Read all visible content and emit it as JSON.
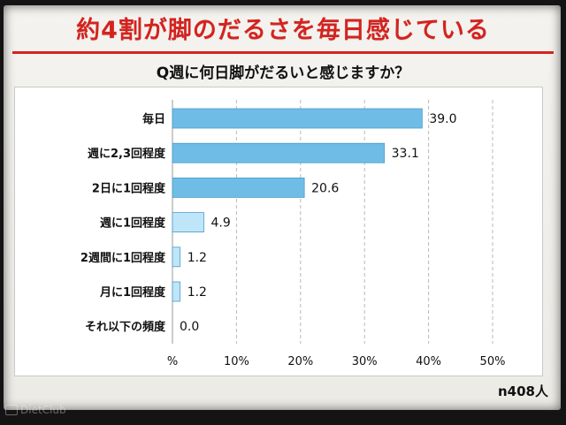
{
  "slide": {
    "headline": "約4割が脚のだるさを毎日感じている",
    "sample_size": "n408人"
  },
  "watermark": {
    "text": "DietClub"
  },
  "chart_data": {
    "type": "bar",
    "orientation": "horizontal",
    "title": "Q週に何日脚がだるいと感じますか？",
    "categories": [
      "毎日",
      "週に2,3回程度",
      "2日に1回程度",
      "週に1回程度",
      "2週間に1回程度",
      "月に1回程度",
      "それ以下の頻度"
    ],
    "values": [
      39.0,
      33.1,
      20.6,
      4.9,
      1.2,
      1.2,
      0.0
    ],
    "value_labels": [
      "39.0",
      "33.1",
      "20.6",
      "4.9",
      "1.2",
      "1.2",
      "0.0"
    ],
    "xlim": [
      0,
      50
    ],
    "ticks": [
      0,
      10,
      20,
      30,
      40,
      50
    ],
    "tick_labels": [
      "%",
      "10%",
      "20%",
      "30%",
      "40%",
      "50%"
    ],
    "grid": "vertical dashed",
    "colors": {
      "high": "#6fbde6",
      "low": "#bfe6f8",
      "edge": "#4a9cc9",
      "headline": "#d4231f"
    }
  }
}
